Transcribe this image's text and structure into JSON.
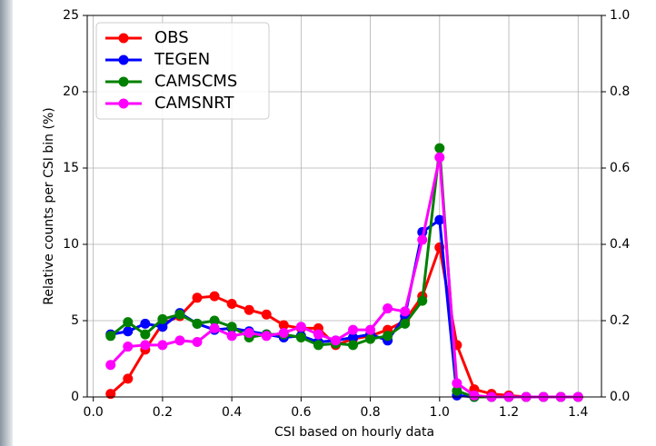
{
  "chart_data": {
    "type": "line",
    "xlabel": "CSI based on hourly data",
    "ylabel": "Relative counts per CSI bin (%)",
    "x": [
      0.05,
      0.1,
      0.15,
      0.2,
      0.25,
      0.3,
      0.35,
      0.4,
      0.45,
      0.5,
      0.55,
      0.6,
      0.65,
      0.7,
      0.75,
      0.8,
      0.85,
      0.9,
      0.95,
      1.0,
      1.05,
      1.1,
      1.15,
      1.2,
      1.25,
      1.3,
      1.35,
      1.4
    ],
    "series": [
      {
        "name": "OBS",
        "color": "#ff0000",
        "values": [
          0.2,
          1.2,
          3.1,
          4.8,
          5.3,
          6.5,
          6.6,
          6.1,
          5.7,
          5.4,
          4.7,
          4.5,
          4.5,
          3.4,
          3.8,
          4.0,
          4.4,
          5.0,
          6.6,
          9.8,
          3.4,
          0.5,
          0.2,
          0.1,
          0,
          0,
          0,
          0
        ]
      },
      {
        "name": "TEGEN",
        "color": "#0000ff",
        "values": [
          4.1,
          4.3,
          4.8,
          4.6,
          5.5,
          4.8,
          4.4,
          4.5,
          4.3,
          4.1,
          3.9,
          4.0,
          3.6,
          3.7,
          3.9,
          4.1,
          3.7,
          5.3,
          10.8,
          11.6,
          0.1,
          0,
          0,
          0,
          0,
          0,
          0,
          0
        ]
      },
      {
        "name": "CAMSCMS",
        "color": "#008000",
        "values": [
          4.0,
          4.9,
          4.1,
          5.1,
          5.4,
          4.8,
          5.0,
          4.6,
          3.9,
          4.1,
          4.1,
          3.9,
          3.4,
          3.5,
          3.4,
          3.8,
          4.0,
          4.8,
          6.3,
          16.3,
          0.4,
          0,
          0,
          0,
          0,
          0,
          0,
          0
        ]
      },
      {
        "name": "CAMSNRT",
        "color": "#ff00ff",
        "values": [
          2.1,
          3.3,
          3.4,
          3.4,
          3.7,
          3.6,
          4.5,
          4.0,
          4.2,
          4.0,
          4.2,
          4.6,
          4.1,
          3.7,
          4.4,
          4.4,
          5.8,
          5.6,
          10.3,
          15.7,
          0.9,
          0.1,
          0,
          0,
          0,
          0,
          0,
          0
        ]
      }
    ],
    "xlim": [
      -0.0175,
      1.4675
    ],
    "xticks": [
      {
        "value": 0,
        "label": "0.0"
      },
      0.2,
      0.4,
      0.6,
      0.8,
      {
        "value": 1,
        "label": "1.0"
      },
      1.2,
      1.4
    ],
    "ylim": [
      0,
      25
    ],
    "yticks": [
      0,
      5,
      10,
      15,
      20,
      25
    ],
    "y2lim": [
      0,
      1
    ],
    "y2ticks": [
      {
        "value": 0,
        "label": "0.0"
      },
      0.2,
      0.4,
      0.6,
      0.8,
      {
        "value": 1,
        "label": "1.0"
      }
    ],
    "grid": true,
    "legend": "upper left"
  }
}
